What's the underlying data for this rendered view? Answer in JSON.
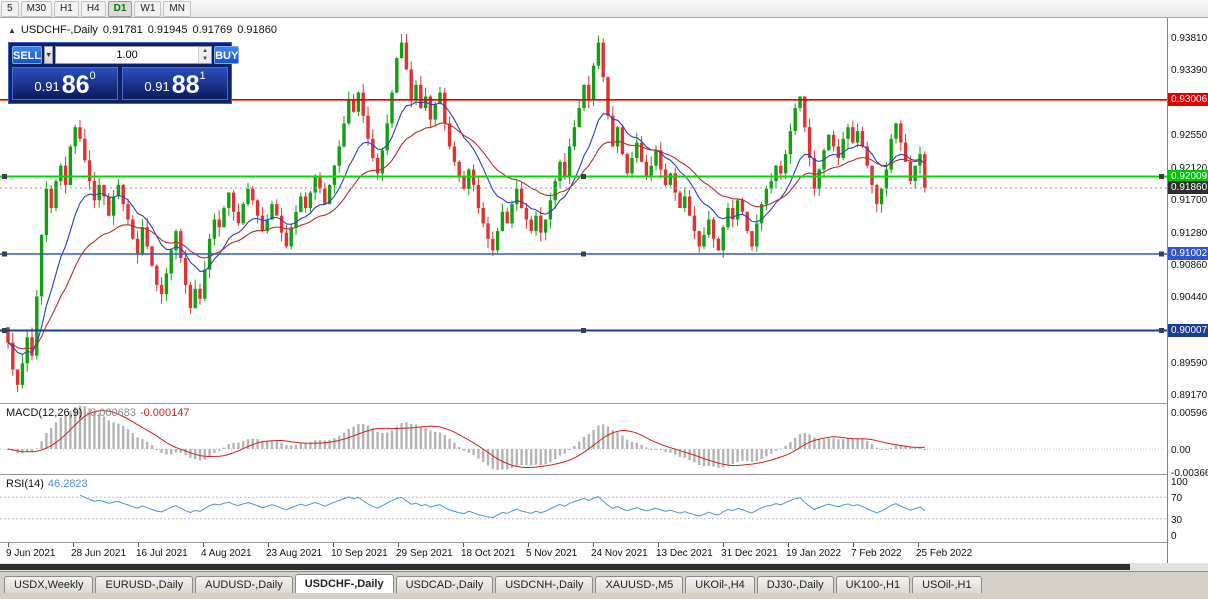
{
  "toolbar": {
    "timeframes": [
      {
        "label": "5",
        "active": false
      },
      {
        "label": "M30",
        "active": false
      },
      {
        "label": "H1",
        "active": false
      },
      {
        "label": "H4",
        "active": false
      },
      {
        "label": "D1",
        "active": true
      },
      {
        "label": "W1",
        "active": false
      },
      {
        "label": "MN",
        "active": false
      }
    ]
  },
  "chart": {
    "title": {
      "collapse_icon": "▲",
      "symbol": "USDCHF-,Daily",
      "open": "0.91781",
      "high": "0.91945",
      "low": "0.91769",
      "close": "0.91860"
    },
    "trade_panel": {
      "sell_label": "SELL",
      "buy_label": "BUY",
      "volume": "1.00",
      "dropdown_icon": "▼",
      "spinner_up_icon": "▲",
      "spinner_down_icon": "▼",
      "sell_price_main": "0.91",
      "sell_price_big": "86",
      "sell_price_sup": "0",
      "buy_price_main": "0.91",
      "buy_price_big": "88",
      "buy_price_sup": "1"
    }
  },
  "macd": {
    "label": "MACD(12,26,9)",
    "main_value": "-0.000683",
    "signal_value": "-0.000147",
    "axis_labels": [
      "0.00596",
      "0.00",
      "-0.00366"
    ]
  },
  "rsi": {
    "label": "RSI(14)",
    "value": "46.2823",
    "axis_labels": [
      "100",
      "70",
      "30",
      "0"
    ],
    "level_lines": [
      70,
      30
    ]
  },
  "tabs": {
    "active_index": 3,
    "items": [
      "USDX,Weekly",
      "EURUSD-,Daily",
      "AUDUSD-,Daily",
      "USDCHF-,Daily",
      "USDCAD-,Daily",
      "USDCNH-,Daily",
      "XAUUSD-,M5",
      "UKOil-,H4",
      "DJ30-,Daily",
      "UK100-,H1",
      "USOil-,H1"
    ]
  },
  "chart_data": {
    "type": "candlestick",
    "symbol": "USDCHF-,Daily",
    "timeframe": "D1",
    "ohlc_display": {
      "open": 0.91781,
      "high": 0.91945,
      "low": 0.91769,
      "close": 0.9186
    },
    "colors": {
      "up": "#12a012",
      "down": "#e03232",
      "macd_histogram": "#b4b4b4",
      "macd_signal": "#cc2222",
      "rsi_line": "#4f94d4"
    },
    "y_axis": {
      "ticks": [
        "0.93810",
        "0.93390",
        "0.92550",
        "0.92120",
        "0.91700",
        "0.91280",
        "0.90860",
        "0.90440",
        "0.89590",
        "0.89170"
      ]
    },
    "levels": [
      {
        "price": 0.93006,
        "label": "0.93006",
        "color": "#dd0000",
        "box_color": "#dd0000",
        "text_color": "#ffffff",
        "width": 1.6,
        "style": "solid",
        "selected": false,
        "type": "resistance-line"
      },
      {
        "price": 0.92009,
        "label": "0.92009",
        "color": "#00dd00",
        "box_color": "#00c400",
        "text_color": "#ffffff",
        "width": 2,
        "style": "solid",
        "selected": true,
        "type": "horizontal-line"
      },
      {
        "price": 0.9186,
        "label": "0.91860",
        "color": "#9a9a9a",
        "box_color": "#2e2e2e",
        "text_color": "#ffffff",
        "width": 1,
        "style": "dot",
        "selected": false,
        "type": "bid-price-line"
      },
      {
        "price": 0.91002,
        "label": "0.91002",
        "color": "#3355cc",
        "box_color": "#3355cc",
        "text_color": "#ffffff",
        "width": 1.6,
        "style": "solid",
        "selected": true,
        "type": "support-line"
      },
      {
        "price": 0.90007,
        "label": "0.90007",
        "color": "#1f3a93",
        "box_color": "#1f3a93",
        "text_color": "#ffffff",
        "width": 2,
        "style": "solid",
        "selected": true,
        "type": "support-line"
      }
    ],
    "moving_averages": [
      {
        "period": 12,
        "color": "#2b3fc0"
      },
      {
        "period": 26,
        "color": "#b03030"
      }
    ],
    "date_labels": [
      "9 Jun 2021",
      "28 Jun 2021",
      "16 Jul 2021",
      "4 Aug 2021",
      "23 Aug 2021",
      "10 Sep 2021",
      "29 Sep 2021",
      "18 Oct 2021",
      "5 Nov 2021",
      "24 Nov 2021",
      "13 Dec 2021",
      "31 Dec 2021",
      "19 Jan 2022",
      "7 Feb 2022",
      "25 Feb 2022"
    ],
    "closes": [
      0.8985,
      0.895,
      0.893,
      0.8958,
      0.8992,
      0.8968,
      0.9045,
      0.9125,
      0.9185,
      0.916,
      0.9195,
      0.9215,
      0.919,
      0.924,
      0.9265,
      0.925,
      0.9222,
      0.9195,
      0.917,
      0.919,
      0.9175,
      0.915,
      0.9175,
      0.919,
      0.9165,
      0.9145,
      0.912,
      0.91,
      0.9135,
      0.911,
      0.9085,
      0.906,
      0.9048,
      0.9075,
      0.9105,
      0.913,
      0.9095,
      0.906,
      0.903,
      0.9055,
      0.9042,
      0.908,
      0.912,
      0.9145,
      0.9135,
      0.916,
      0.918,
      0.9155,
      0.914,
      0.9165,
      0.9185,
      0.917,
      0.915,
      0.913,
      0.9145,
      0.9165,
      0.915,
      0.9128,
      0.911,
      0.9135,
      0.9155,
      0.9175,
      0.916,
      0.918,
      0.92,
      0.9185,
      0.9165,
      0.919,
      0.9215,
      0.924,
      0.927,
      0.93,
      0.9285,
      0.931,
      0.928,
      0.925,
      0.9225,
      0.9205,
      0.9235,
      0.927,
      0.931,
      0.9355,
      0.9375,
      0.934,
      0.93,
      0.932,
      0.929,
      0.9305,
      0.9275,
      0.9295,
      0.931,
      0.927,
      0.924,
      0.922,
      0.92,
      0.9185,
      0.921,
      0.919,
      0.916,
      0.914,
      0.912,
      0.9105,
      0.913,
      0.9155,
      0.914,
      0.9165,
      0.9185,
      0.916,
      0.9145,
      0.913,
      0.915,
      0.9128,
      0.9145,
      0.917,
      0.9195,
      0.922,
      0.92,
      0.924,
      0.9265,
      0.929,
      0.932,
      0.93,
      0.9345,
      0.9375,
      0.933,
      0.928,
      0.924,
      0.9265,
      0.923,
      0.9205,
      0.9225,
      0.9245,
      0.922,
      0.92,
      0.9215,
      0.9235,
      0.921,
      0.919,
      0.9205,
      0.918,
      0.916,
      0.9175,
      0.915,
      0.913,
      0.911,
      0.9125,
      0.9145,
      0.912,
      0.9105,
      0.9135,
      0.916,
      0.9145,
      0.917,
      0.9155,
      0.913,
      0.911,
      0.914,
      0.9165,
      0.9185,
      0.9195,
      0.9215,
      0.9205,
      0.923,
      0.926,
      0.929,
      0.9305,
      0.9265,
      0.9225,
      0.9185,
      0.921,
      0.9235,
      0.9255,
      0.924,
      0.9225,
      0.925,
      0.9265,
      0.9245,
      0.926,
      0.924,
      0.9215,
      0.919,
      0.9165,
      0.9185,
      0.921,
      0.925,
      0.927,
      0.9245,
      0.922,
      0.9195,
      0.9215,
      0.923,
      0.9186
    ],
    "indicators": [
      {
        "name": "MACD",
        "params": "12,26,9",
        "main_value": -0.000683,
        "signal_value": -0.000147
      },
      {
        "name": "RSI",
        "params": "14",
        "value": 46.2823
      }
    ]
  }
}
